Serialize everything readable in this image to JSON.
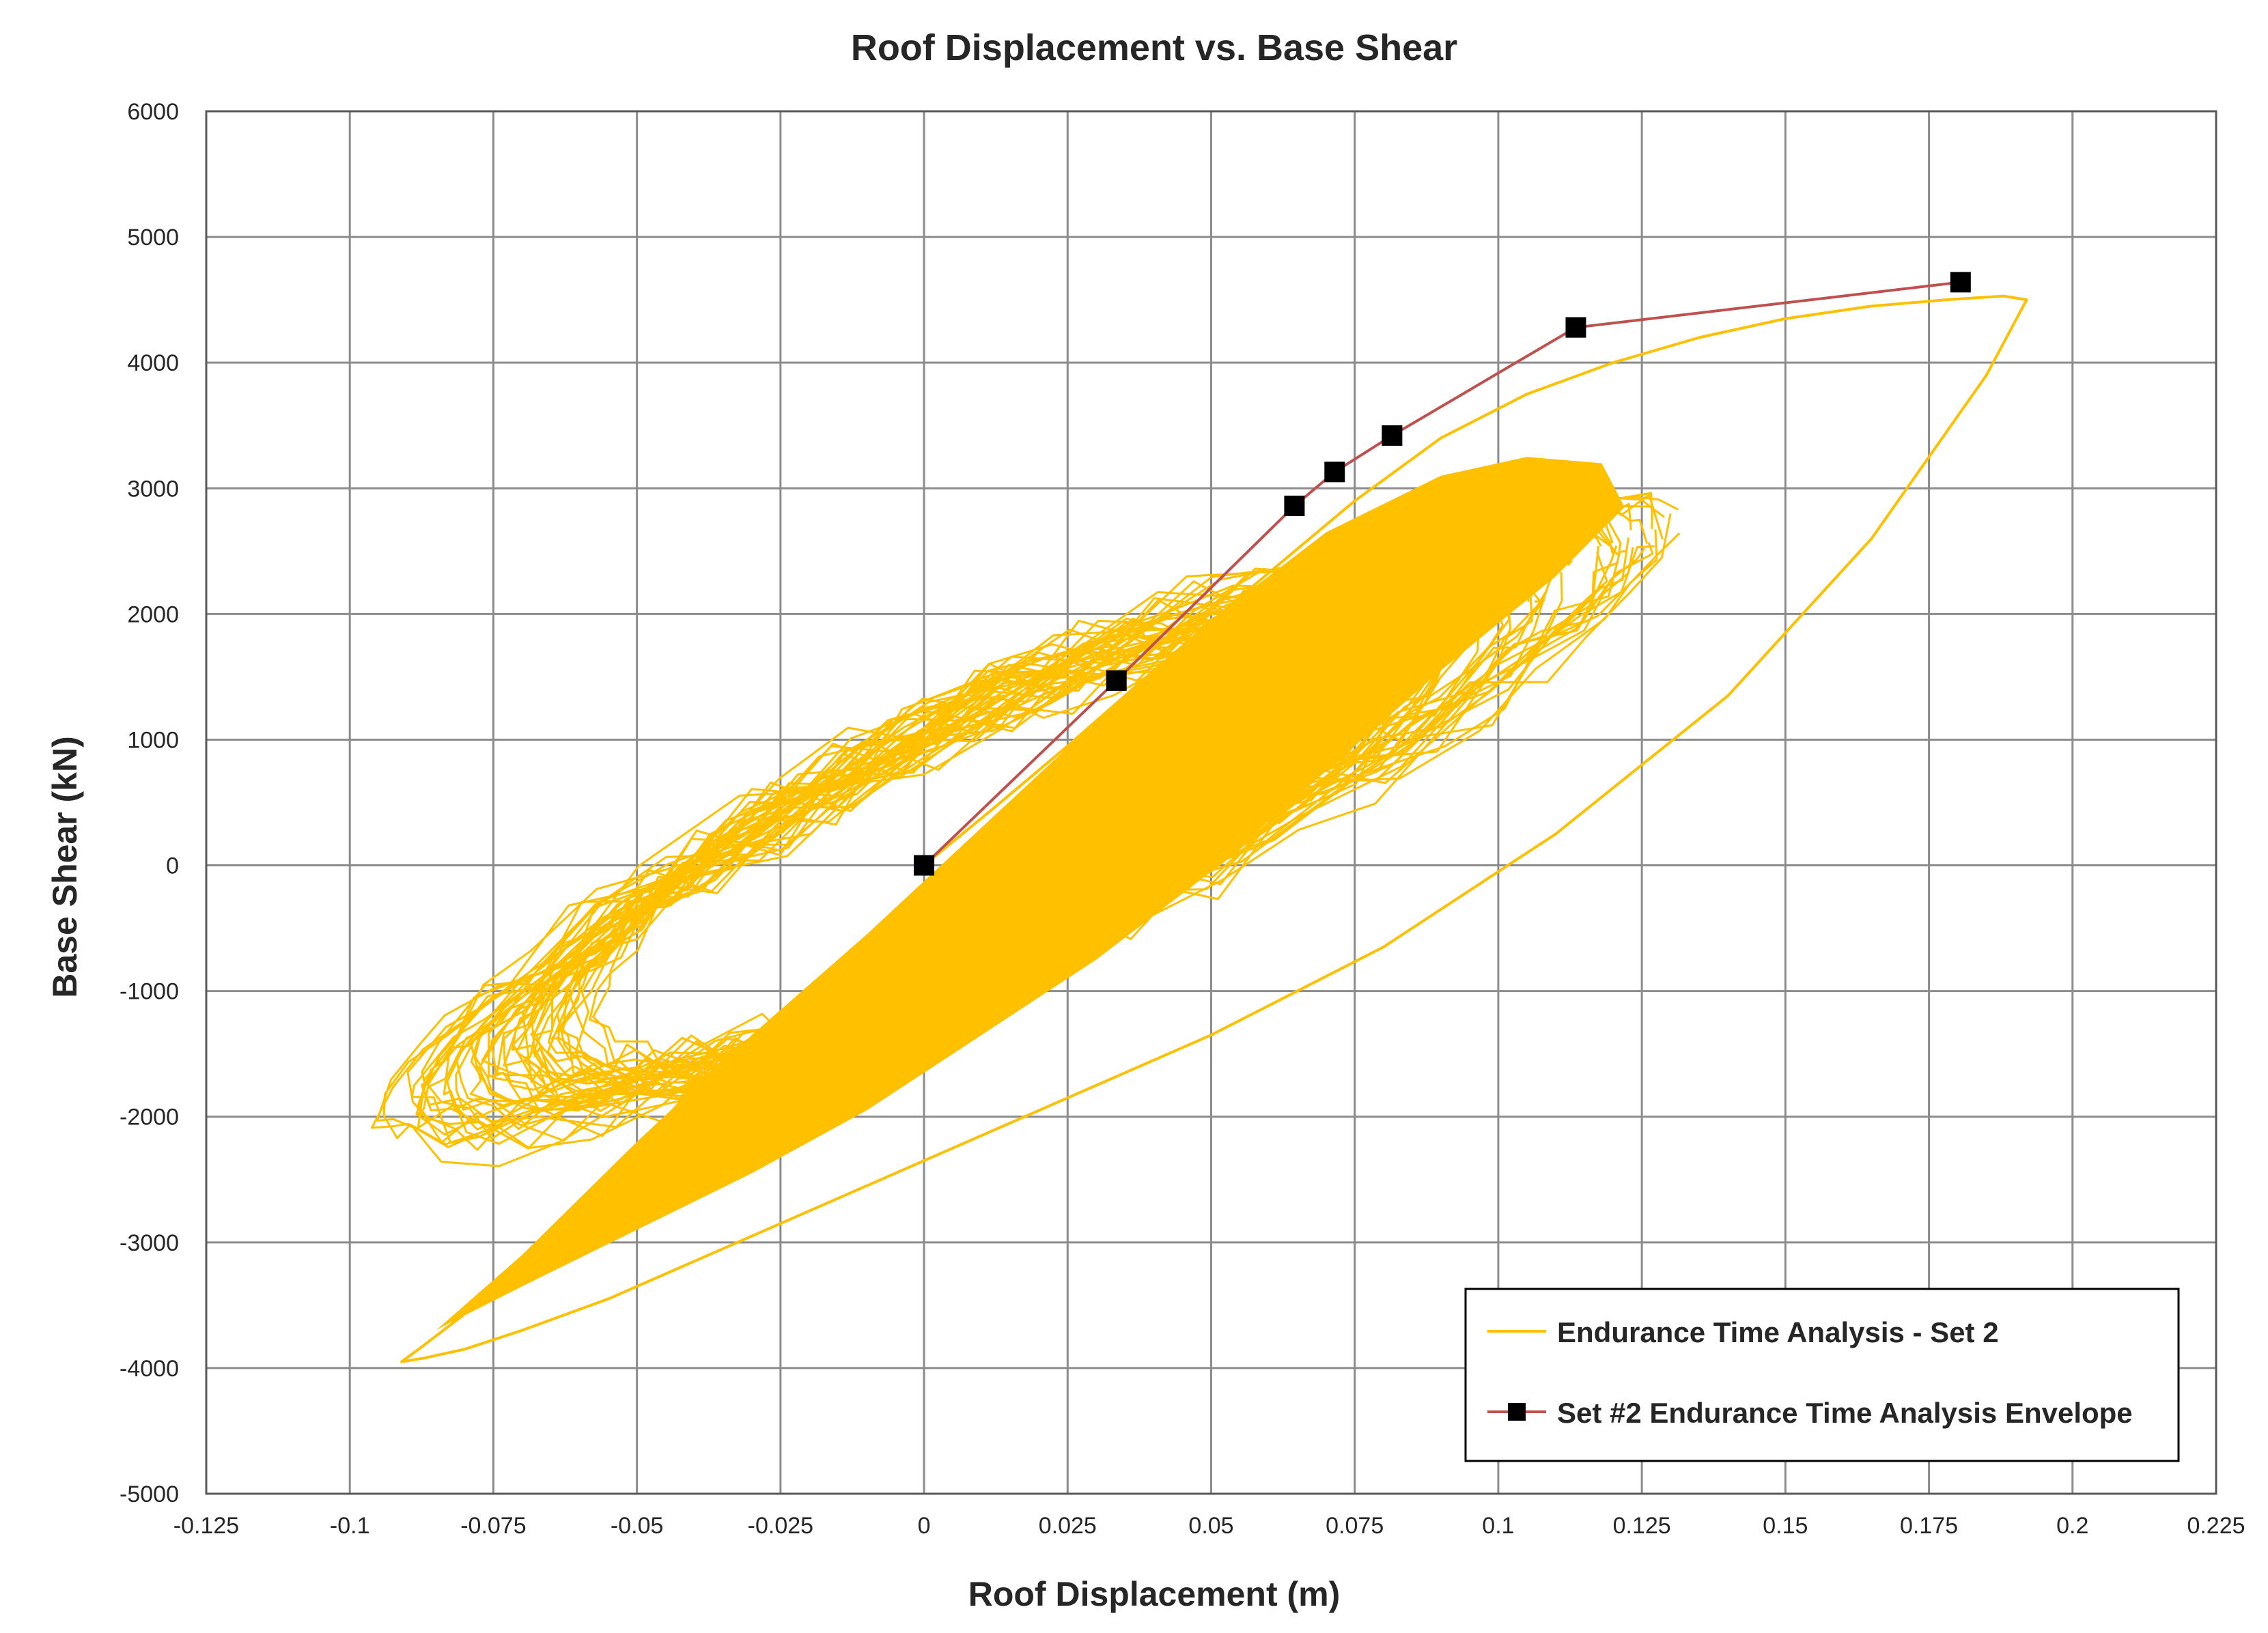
{
  "chart_data": {
    "type": "scatter",
    "title": "Roof Displacement vs. Base Shear",
    "xlabel": "Roof Displacement (m)",
    "ylabel": "Base Shear (kN)",
    "xlim": [
      -0.125,
      0.225
    ],
    "ylim": [
      -5000,
      6000
    ],
    "grid": true,
    "x_ticks": [
      -0.125,
      -0.1,
      -0.075,
      -0.05,
      -0.025,
      0,
      0.025,
      0.05,
      0.075,
      0.1,
      0.125,
      0.15,
      0.175,
      0.2,
      0.225
    ],
    "x_tick_labels": [
      "-0.125",
      "-0.1",
      "-0.075",
      "-0.05",
      "-0.025",
      "0",
      "0.025",
      "0.05",
      "0.075",
      "0.1",
      "0.125",
      "0.15",
      "0.175",
      "0.2",
      "0.225"
    ],
    "y_ticks": [
      -5000,
      -4000,
      -3000,
      -2000,
      -1000,
      0,
      1000,
      2000,
      3000,
      4000,
      5000,
      6000
    ],
    "y_tick_labels": [
      "-5000",
      "-4000",
      "-3000",
      "-2000",
      "-1000",
      "0",
      "1000",
      "2000",
      "3000",
      "4000",
      "5000",
      "6000"
    ],
    "legend_position": "bottom-right",
    "series": [
      {
        "name": "Endurance Time Analysis - Set 2",
        "type": "line",
        "color": "#FFC000",
        "x": [
          0,
          0.012,
          0.025,
          0.04,
          0.058,
          0.075,
          0.09,
          0.105,
          0.12,
          0.135,
          0.15,
          0.165,
          0.178,
          0.188,
          0.192,
          0.185,
          0.165,
          0.14,
          0.11,
          0.08,
          0.05,
          0.02,
          -0.01,
          -0.035,
          -0.055,
          -0.07,
          -0.08,
          -0.087,
          -0.091,
          -0.088,
          -0.078,
          -0.062,
          -0.045,
          -0.028,
          -0.012,
          0.002
        ],
        "y": [
          0,
          450,
          950,
          1550,
          2250,
          2900,
          3400,
          3750,
          4000,
          4200,
          4350,
          4450,
          4500,
          4530,
          4500,
          3900,
          2600,
          1350,
          250,
          -650,
          -1350,
          -1950,
          -2550,
          -3050,
          -3450,
          -3700,
          -3850,
          -3920,
          -3950,
          -3850,
          -3500,
          -3000,
          -2400,
          -1750,
          -1050,
          -200
        ]
      },
      {
        "name": "Set #2 Endurance Time Analysis Envelope",
        "type": "line+marker",
        "color": "#C0504D",
        "marker_color": "#000000",
        "x": [
          0,
          0.0335,
          0.0645,
          0.0715,
          0.0815,
          0.1135,
          0.1805
        ],
        "y": [
          0,
          1470,
          2860,
          3130,
          3420,
          4280,
          4640
        ]
      }
    ]
  }
}
